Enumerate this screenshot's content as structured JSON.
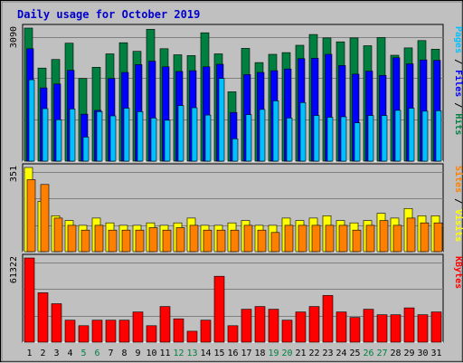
{
  "chart_data": {
    "type": "bar",
    "title": "Daily usage for October 2019",
    "days": [
      "1",
      "2",
      "3",
      "4",
      "5",
      "6",
      "7",
      "8",
      "9",
      "10",
      "11",
      "12",
      "13",
      "14",
      "15",
      "16",
      "17",
      "18",
      "19",
      "20",
      "21",
      "22",
      "23",
      "24",
      "25",
      "26",
      "27",
      "28",
      "29",
      "30",
      "31"
    ],
    "weekend_days": [
      "5",
      "6",
      "12",
      "13",
      "19",
      "20",
      "26",
      "27"
    ],
    "colors": {
      "hits": "#008040",
      "files": "#0000ff",
      "pages": "#00c0ff",
      "visits": "#ffff00",
      "sites": "#ff8000",
      "kbytes": "#ff0000",
      "weekday_label": "#000000",
      "weekend_label": "#008040",
      "title": "#0000cc"
    },
    "panels": [
      {
        "id": "top",
        "max_label": "3090",
        "ymax": 3090,
        "series": [
          {
            "name": "Hits",
            "color": "#008040",
            "values": [
              3090,
              2160,
              2360,
              2740,
              1920,
              2180,
              2490,
              2750,
              2550,
              3060,
              2610,
              2470,
              2450,
              2980,
              2490,
              1610,
              2620,
              2290,
              2480,
              2520,
              2690,
              2940,
              2860,
              2770,
              2860,
              2680,
              2870,
              2460,
              2630,
              2800,
              2600
            ]
          },
          {
            "name": "Files",
            "color": "#0000ff",
            "values": [
              2610,
              1700,
              1790,
              2110,
              1090,
              1180,
              1920,
              2060,
              2240,
              2320,
              2190,
              2080,
              2100,
              2190,
              2250,
              1130,
              2010,
              2060,
              2100,
              2140,
              2380,
              2390,
              2480,
              2220,
              2020,
              2090,
              1990,
              2400,
              2260,
              2350,
              2340
            ]
          },
          {
            "name": "Pages",
            "color": "#00c0ff",
            "values": [
              1890,
              1220,
              960,
              1210,
              560,
              1150,
              1050,
              1230,
              1150,
              1000,
              950,
              1290,
              1240,
              1070,
              1920,
              520,
              1080,
              1200,
              1400,
              1000,
              1360,
              1060,
              1020,
              1030,
              890,
              1060,
              1060,
              1180,
              1230,
              1160,
              1170
            ]
          }
        ]
      },
      {
        "id": "middle",
        "max_label": "351",
        "ymax": 351,
        "series": [
          {
            "name": "Visits",
            "color": "#ffff00",
            "values": [
              351,
              210,
              150,
              130,
              110,
              140,
              120,
              110,
              110,
              120,
              110,
              120,
              140,
              110,
              110,
              120,
              130,
              110,
              110,
              140,
              130,
              140,
              150,
              130,
              120,
              130,
              160,
              140,
              180,
              150,
              150
            ]
          },
          {
            "name": "Sites",
            "color": "#ff8000",
            "values": [
              300,
              280,
              140,
              110,
              90,
              110,
              90,
              90,
              90,
              100,
              90,
              100,
              110,
              90,
              90,
              90,
              110,
              90,
              80,
              110,
              110,
              110,
              110,
              110,
              90,
              110,
              130,
              110,
              140,
              120,
              120
            ]
          }
        ]
      },
      {
        "id": "bottom",
        "max_label": "61322",
        "ymax": 61322,
        "series": [
          {
            "name": "KBytes",
            "color": "#ff0000",
            "values": [
              61322,
              36000,
              28000,
              16000,
              12000,
              16000,
              16000,
              16000,
              22000,
              12000,
              26000,
              17000,
              8000,
              16000,
              48000,
              12000,
              24000,
              26000,
              24000,
              16000,
              22000,
              26000,
              34000,
              22000,
              18000,
              24000,
              20000,
              20000,
              25000,
              20000,
              22000
            ]
          }
        ]
      }
    ],
    "legends": {
      "top": [
        {
          "text": "Pages",
          "color": "#00c0ff"
        },
        {
          "text": " / ",
          "color": "#000000"
        },
        {
          "text": "Files",
          "color": "#0000ff"
        },
        {
          "text": " / ",
          "color": "#000000"
        },
        {
          "text": "Hits",
          "color": "#008040"
        }
      ],
      "middle": [
        {
          "text": "Sites",
          "color": "#ff8000"
        },
        {
          "text": " / ",
          "color": "#000000"
        },
        {
          "text": "Visits",
          "color": "#ffff00"
        }
      ],
      "bottom": [
        {
          "text": "KBytes",
          "color": "#ff0000"
        }
      ]
    }
  }
}
